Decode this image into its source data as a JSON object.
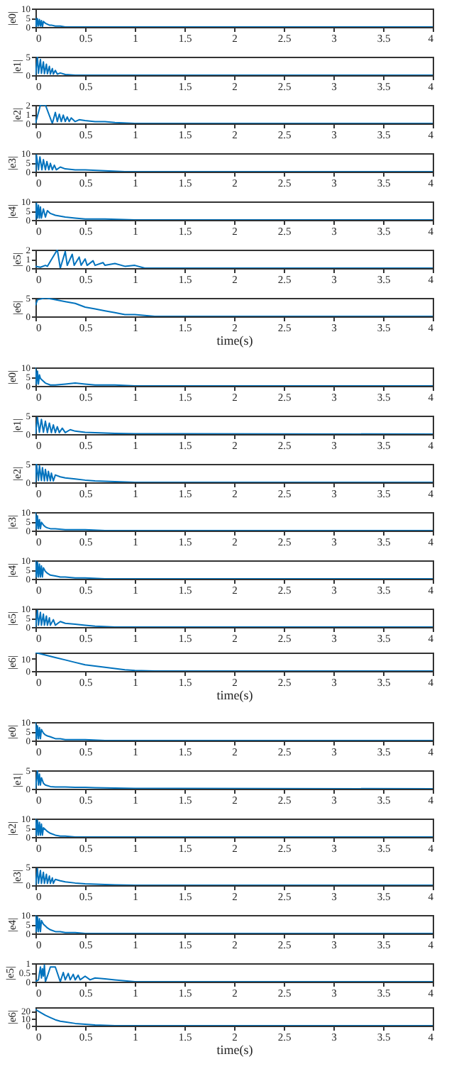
{
  "chart_data": [
    {
      "type": "line",
      "ylabel": "|e0|",
      "color": "#0072bd",
      "xlim": [
        0,
        4
      ],
      "xticks": [
        0,
        0.5,
        1,
        1.5,
        2,
        2.5,
        3,
        3.5,
        4
      ],
      "ylim": [
        0,
        10
      ],
      "yticks": [
        0,
        5,
        10
      ],
      "grid": false,
      "x": [
        0,
        0.01,
        0.02,
        0.03,
        0.04,
        0.05,
        0.06,
        0.07,
        0.08,
        0.1,
        0.12,
        0.14,
        0.16,
        0.2,
        0.25,
        0.3,
        0.4,
        0.5,
        0.7,
        1,
        4
      ],
      "values": [
        5,
        0,
        4.5,
        0.5,
        4,
        0.5,
        3.5,
        0,
        3,
        2,
        1.5,
        1,
        1,
        0.5,
        0.5,
        0,
        0,
        0,
        0,
        0,
        0
      ]
    },
    {
      "type": "line",
      "ylabel": "|e1|",
      "color": "#0072bd",
      "xlim": [
        0,
        4
      ],
      "xticks": [
        0,
        0.5,
        1,
        1.5,
        2,
        2.5,
        3,
        3.5,
        4
      ],
      "ylim": [
        0,
        5
      ],
      "yticks": [
        0,
        5
      ],
      "grid": false,
      "x": [
        0,
        0.02,
        0.03,
        0.05,
        0.06,
        0.08,
        0.09,
        0.11,
        0.12,
        0.14,
        0.15,
        0.17,
        0.18,
        0.2,
        0.22,
        0.25,
        0.3,
        0.4,
        4
      ],
      "values": [
        0,
        5,
        0.5,
        4.3,
        0.5,
        3.6,
        0.4,
        3,
        0.4,
        2.4,
        0.3,
        1.8,
        0.3,
        1.3,
        0.3,
        0.6,
        0.2,
        0,
        0
      ]
    },
    {
      "type": "line",
      "ylabel": "|e2|",
      "color": "#0072bd",
      "xlim": [
        0,
        4
      ],
      "xticks": [
        0,
        0.5,
        1,
        1.5,
        2,
        2.5,
        3,
        3.5,
        4
      ],
      "ylim": [
        0,
        2
      ],
      "yticks": [
        0,
        1,
        2
      ],
      "grid": false,
      "x": [
        0,
        0.05,
        0.1,
        0.17,
        0.2,
        0.22,
        0.24,
        0.26,
        0.28,
        0.3,
        0.32,
        0.34,
        0.36,
        0.4,
        0.44,
        0.5,
        0.6,
        0.7,
        0.8,
        1,
        4
      ],
      "values": [
        0,
        2,
        2,
        0,
        1.2,
        0.2,
        1,
        0.2,
        0.9,
        0.2,
        0.7,
        0.2,
        0.6,
        0.2,
        0.4,
        0.3,
        0.2,
        0.2,
        0.1,
        0,
        0
      ]
    },
    {
      "type": "line",
      "ylabel": "|e3|",
      "color": "#0072bd",
      "xlim": [
        0,
        4
      ],
      "xticks": [
        0,
        0.5,
        1,
        1.5,
        2,
        2.5,
        3,
        3.5,
        4
      ],
      "ylim": [
        0,
        10
      ],
      "yticks": [
        0,
        5,
        10
      ],
      "grid": false,
      "x": [
        0,
        0.01,
        0.03,
        0.045,
        0.065,
        0.08,
        0.1,
        0.115,
        0.135,
        0.15,
        0.17,
        0.19,
        0.21,
        0.25,
        0.3,
        0.4,
        0.5,
        0.7,
        0.9,
        1,
        4
      ],
      "values": [
        0,
        9,
        1,
        8,
        1,
        6.5,
        1,
        5.5,
        1,
        4.5,
        1,
        3.5,
        1,
        2.5,
        1.5,
        1,
        1,
        0.5,
        0,
        0,
        0
      ]
    },
    {
      "type": "line",
      "ylabel": "|e4|",
      "color": "#0072bd",
      "xlim": [
        0,
        4
      ],
      "xticks": [
        0,
        0.5,
        1,
        1.5,
        2,
        2.5,
        3,
        3.5,
        4
      ],
      "ylim": [
        0,
        10
      ],
      "yticks": [
        0,
        5,
        10
      ],
      "grid": false,
      "x": [
        0,
        0.01,
        0.02,
        0.03,
        0.04,
        0.05,
        0.06,
        0.08,
        0.1,
        0.12,
        0.15,
        0.2,
        0.25,
        0.3,
        0.4,
        0.5,
        0.7,
        1,
        4
      ],
      "values": [
        0,
        9,
        1,
        8,
        1,
        7,
        1,
        6,
        1.5,
        5,
        3.5,
        2.5,
        2,
        1.5,
        1,
        0.5,
        0.5,
        0,
        0
      ]
    },
    {
      "type": "line",
      "ylabel": "|e5|",
      "color": "#0072bd",
      "xlim": [
        0,
        4
      ],
      "xticks": [
        0,
        0.5,
        1,
        1.5,
        2,
        2.5,
        3,
        3.5,
        4
      ],
      "ylim": [
        0,
        2
      ],
      "yticks": [
        0,
        1,
        2
      ],
      "grid": false,
      "x": [
        0,
        0.05,
        0.1,
        0.12,
        0.22,
        0.25,
        0.3,
        0.32,
        0.37,
        0.39,
        0.44,
        0.46,
        0.5,
        0.52,
        0.58,
        0.6,
        0.68,
        0.7,
        0.8,
        0.9,
        1,
        1.1,
        4
      ],
      "values": [
        0.2,
        0.1,
        0.3,
        0.2,
        2,
        0,
        1.8,
        0.3,
        1.5,
        0.3,
        1.2,
        0.3,
        1,
        0.3,
        0.8,
        0.3,
        0.6,
        0.3,
        0.5,
        0.2,
        0.3,
        0,
        0
      ]
    },
    {
      "type": "line",
      "ylabel": "|e6|",
      "xlabel": "time(s)",
      "color": "#0072bd",
      "xlim": [
        0,
        4
      ],
      "xticks": [
        0,
        0.5,
        1,
        1.5,
        2,
        2.5,
        3,
        3.5,
        4
      ],
      "ylim": [
        0,
        5
      ],
      "yticks": [
        0,
        5
      ],
      "grid": false,
      "x": [
        0,
        0.02,
        0.1,
        0.2,
        0.3,
        0.4,
        0.5,
        0.6,
        0.7,
        0.8,
        0.9,
        1,
        1.2,
        1.5,
        4
      ],
      "values": [
        3,
        4.5,
        5,
        4.5,
        4,
        3.5,
        2.5,
        2,
        1.5,
        1,
        0.5,
        0.5,
        0,
        0,
        0
      ]
    },
    {
      "type": "line",
      "ylabel": "|e0|",
      "color": "#0072bd",
      "xlim": [
        0,
        4
      ],
      "xticks": [
        0,
        0.5,
        1,
        1.5,
        2,
        2.5,
        3,
        3.5,
        4
      ],
      "ylim": [
        0,
        10
      ],
      "yticks": [
        0,
        5,
        10
      ],
      "grid": false,
      "x": [
        0,
        0.01,
        0.02,
        0.03,
        0.04,
        0.05,
        0.07,
        0.1,
        0.15,
        0.2,
        0.3,
        0.4,
        0.5,
        0.6,
        0.8,
        1,
        4
      ],
      "values": [
        10,
        1,
        8,
        1,
        6,
        4,
        3,
        1.5,
        0.5,
        0.5,
        1,
        1.5,
        1,
        0.5,
        0.5,
        0,
        0
      ]
    },
    {
      "type": "line",
      "ylabel": "|e1|",
      "color": "#0072bd",
      "xlim": [
        0,
        4
      ],
      "xticks": [
        0,
        0.5,
        1,
        1.5,
        2,
        2.5,
        3,
        3.5,
        4
      ],
      "ylim": [
        0,
        5
      ],
      "yticks": [
        0,
        5
      ],
      "grid": false,
      "x": [
        0,
        0.02,
        0.04,
        0.06,
        0.08,
        0.1,
        0.12,
        0.14,
        0.16,
        0.18,
        0.2,
        0.22,
        0.24,
        0.27,
        0.3,
        0.35,
        0.4,
        0.5,
        0.6,
        0.8,
        1,
        4
      ],
      "values": [
        0,
        4.5,
        0.5,
        4,
        0.5,
        3.5,
        0.4,
        3,
        0.4,
        2.5,
        0.4,
        2,
        0.4,
        1.6,
        0.4,
        1.2,
        0.8,
        0.5,
        0.4,
        0.2,
        0.1,
        0
      ]
    },
    {
      "type": "line",
      "ylabel": "|e2|",
      "color": "#0072bd",
      "xlim": [
        0,
        4
      ],
      "xticks": [
        0,
        0.5,
        1,
        1.5,
        2,
        2.5,
        3,
        3.5,
        4
      ],
      "ylim": [
        0,
        5
      ],
      "yticks": [
        0,
        5
      ],
      "grid": false,
      "x": [
        0,
        0.01,
        0.03,
        0.04,
        0.06,
        0.07,
        0.09,
        0.1,
        0.12,
        0.13,
        0.15,
        0.16,
        0.18,
        0.2,
        0.25,
        0.3,
        0.4,
        0.5,
        0.6,
        0.8,
        1,
        4
      ],
      "values": [
        0,
        5,
        0.5,
        4.5,
        0.5,
        4,
        0.4,
        3.5,
        0.4,
        3,
        0.4,
        2.5,
        0.4,
        2,
        1.5,
        1.2,
        0.9,
        0.6,
        0.4,
        0.2,
        0,
        0
      ]
    },
    {
      "type": "line",
      "ylabel": "|e3|",
      "color": "#0072bd",
      "xlim": [
        0,
        4
      ],
      "xticks": [
        0,
        0.5,
        1,
        1.5,
        2,
        2.5,
        3,
        3.5,
        4
      ],
      "ylim": [
        0,
        10
      ],
      "yticks": [
        0,
        5,
        10
      ],
      "grid": false,
      "x": [
        0,
        0.01,
        0.02,
        0.03,
        0.04,
        0.05,
        0.06,
        0.08,
        0.1,
        0.12,
        0.15,
        0.2,
        0.3,
        0.4,
        0.5,
        0.7,
        1,
        4
      ],
      "values": [
        10,
        1,
        8,
        1,
        6,
        1,
        4.5,
        3,
        2,
        1.5,
        1,
        1,
        0.5,
        0.5,
        0.5,
        0,
        0,
        0
      ]
    },
    {
      "type": "line",
      "ylabel": "|e4|",
      "color": "#0072bd",
      "xlim": [
        0,
        4
      ],
      "xticks": [
        0,
        0.5,
        1,
        1.5,
        2,
        2.5,
        3,
        3.5,
        4
      ],
      "ylim": [
        0,
        10
      ],
      "yticks": [
        0,
        5,
        10
      ],
      "grid": false,
      "x": [
        0,
        0.01,
        0.02,
        0.03,
        0.04,
        0.05,
        0.06,
        0.07,
        0.08,
        0.1,
        0.12,
        0.15,
        0.2,
        0.25,
        0.3,
        0.4,
        0.5,
        0.7,
        1,
        4
      ],
      "values": [
        10,
        1,
        9,
        1,
        8,
        1,
        7,
        1,
        6,
        4,
        3,
        2,
        1.5,
        1,
        1,
        0.5,
        0.5,
        0,
        0,
        0
      ]
    },
    {
      "type": "line",
      "ylabel": "|e5|",
      "color": "#0072bd",
      "xlim": [
        0,
        4
      ],
      "xticks": [
        0,
        0.5,
        1,
        1.5,
        2,
        2.5,
        3,
        3.5,
        4
      ],
      "ylim": [
        0,
        10
      ],
      "yticks": [
        0,
        5,
        10
      ],
      "grid": false,
      "x": [
        0,
        0.02,
        0.03,
        0.05,
        0.06,
        0.08,
        0.09,
        0.11,
        0.12,
        0.14,
        0.15,
        0.18,
        0.2,
        0.25,
        0.3,
        0.4,
        0.5,
        0.6,
        0.8,
        1,
        4
      ],
      "values": [
        0,
        9,
        1,
        8,
        1,
        7,
        1,
        6,
        1,
        5,
        1,
        4,
        1,
        3,
        2,
        1.5,
        1,
        0.5,
        0,
        0,
        0
      ]
    },
    {
      "type": "line",
      "ylabel": "|e6|",
      "xlabel": "time(s)",
      "color": "#0072bd",
      "xlim": [
        0,
        4
      ],
      "xticks": [
        0,
        0.5,
        1,
        1.5,
        2,
        2.5,
        3,
        3.5,
        4
      ],
      "ylim": [
        0,
        15
      ],
      "yticks": [
        0,
        10
      ],
      "grid": false,
      "x": [
        0,
        0.1,
        0.2,
        0.3,
        0.4,
        0.5,
        0.6,
        0.7,
        0.8,
        0.9,
        1,
        1.2,
        1.5,
        4
      ],
      "values": [
        15,
        13,
        11,
        9,
        7,
        5,
        4,
        3,
        2,
        1,
        0.5,
        0,
        0,
        0
      ]
    },
    {
      "type": "line",
      "ylabel": "|e0|",
      "color": "#0072bd",
      "xlim": [
        0,
        4
      ],
      "xticks": [
        0,
        0.5,
        1,
        1.5,
        2,
        2.5,
        3,
        3.5,
        4
      ],
      "ylim": [
        0,
        10
      ],
      "yticks": [
        0,
        5,
        10
      ],
      "grid": false,
      "x": [
        0,
        0.01,
        0.02,
        0.03,
        0.04,
        0.05,
        0.06,
        0.08,
        0.1,
        0.12,
        0.15,
        0.2,
        0.25,
        0.3,
        0.4,
        0.5,
        0.7,
        1,
        4
      ],
      "values": [
        10,
        1,
        8,
        1,
        7,
        1,
        6,
        4,
        3,
        2.5,
        2,
        1,
        1,
        0.5,
        0.5,
        0.5,
        0,
        0,
        0
      ]
    },
    {
      "type": "line",
      "ylabel": "|e1|",
      "color": "#0072bd",
      "xlim": [
        0,
        4
      ],
      "xticks": [
        0,
        0.5,
        1,
        1.5,
        2,
        2.5,
        3,
        3.5,
        4
      ],
      "ylim": [
        0,
        5
      ],
      "yticks": [
        0,
        5
      ],
      "grid": false,
      "x": [
        0,
        0.02,
        0.03,
        0.04,
        0.05,
        0.06,
        0.08,
        0.1,
        0.15,
        0.2,
        0.3,
        0.4,
        0.5,
        0.6,
        0.8,
        1,
        4
      ],
      "values": [
        0,
        5,
        1,
        4,
        1,
        3,
        1.5,
        1,
        0.6,
        0.5,
        0.5,
        0.4,
        0.4,
        0.3,
        0.2,
        0.1,
        0
      ]
    },
    {
      "type": "line",
      "ylabel": "|e2|",
      "color": "#0072bd",
      "xlim": [
        0,
        4
      ],
      "xticks": [
        0,
        0.5,
        1,
        1.5,
        2,
        2.5,
        3,
        3.5,
        4
      ],
      "ylim": [
        0,
        10
      ],
      "yticks": [
        0,
        5,
        10
      ],
      "grid": false,
      "x": [
        0,
        0.01,
        0.02,
        0.03,
        0.04,
        0.05,
        0.06,
        0.07,
        0.08,
        0.1,
        0.12,
        0.15,
        0.2,
        0.25,
        0.3,
        0.4,
        0.5,
        1,
        4
      ],
      "values": [
        10,
        1,
        9,
        1,
        8,
        1,
        7,
        1,
        5,
        4,
        3,
        2,
        1,
        0.5,
        0.5,
        0,
        0,
        0,
        0
      ]
    },
    {
      "type": "line",
      "ylabel": "|e3|",
      "color": "#0072bd",
      "xlim": [
        0,
        4
      ],
      "xticks": [
        0,
        0.5,
        1,
        1.5,
        2,
        2.5,
        3,
        3.5,
        4
      ],
      "ylim": [
        0,
        5
      ],
      "yticks": [
        0,
        5
      ],
      "grid": false,
      "x": [
        0,
        0.02,
        0.03,
        0.05,
        0.06,
        0.08,
        0.09,
        0.11,
        0.12,
        0.14,
        0.15,
        0.17,
        0.18,
        0.2,
        0.25,
        0.3,
        0.4,
        0.5,
        0.6,
        0.8,
        1,
        4
      ],
      "values": [
        0,
        4.5,
        0.5,
        4,
        0.5,
        3.5,
        0.5,
        3,
        0.5,
        2.5,
        0.5,
        2,
        0.5,
        1.6,
        1.2,
        0.9,
        0.6,
        0.4,
        0.3,
        0.1,
        0,
        0
      ]
    },
    {
      "type": "line",
      "ylabel": "|e4|",
      "color": "#0072bd",
      "xlim": [
        0,
        4
      ],
      "xticks": [
        0,
        0.5,
        1,
        1.5,
        2,
        2.5,
        3,
        3.5,
        4
      ],
      "ylim": [
        0,
        10
      ],
      "yticks": [
        0,
        5,
        10
      ],
      "grid": false,
      "x": [
        0,
        0.01,
        0.02,
        0.03,
        0.04,
        0.05,
        0.06,
        0.08,
        0.1,
        0.12,
        0.15,
        0.2,
        0.25,
        0.3,
        0.4,
        0.5,
        0.7,
        1,
        4
      ],
      "values": [
        10,
        1,
        9,
        1,
        8,
        1,
        7,
        5,
        4,
        3,
        2,
        1,
        1,
        0.5,
        0.5,
        0,
        0,
        0,
        0
      ]
    },
    {
      "type": "line",
      "ylabel": "|e5|",
      "color": "#0072bd",
      "xlim": [
        0,
        4
      ],
      "xticks": [
        0,
        0.5,
        1,
        1.5,
        2,
        2.5,
        3,
        3.5,
        4
      ],
      "ylim": [
        0,
        1
      ],
      "yticks": [
        0,
        0.5,
        1
      ],
      "grid": false,
      "x": [
        0,
        0.03,
        0.05,
        0.06,
        0.07,
        0.08,
        0.09,
        0.1,
        0.12,
        0.15,
        0.2,
        0.25,
        0.28,
        0.3,
        0.33,
        0.35,
        0.38,
        0.4,
        0.43,
        0.45,
        0.5,
        0.55,
        0.6,
        0.7,
        0.8,
        1,
        4
      ],
      "values": [
        0,
        0.1,
        0.8,
        0.2,
        0.7,
        0.3,
        0.9,
        0,
        0.3,
        0.8,
        0.8,
        0,
        0.5,
        0.1,
        0.45,
        0.1,
        0.4,
        0.1,
        0.35,
        0.1,
        0.3,
        0.1,
        0.2,
        0.15,
        0.1,
        0,
        0
      ]
    },
    {
      "type": "line",
      "ylabel": "|e6|",
      "xlabel": "time(s)",
      "color": "#0072bd",
      "xlim": [
        0,
        4
      ],
      "xticks": [
        0,
        0.5,
        1,
        1.5,
        2,
        2.5,
        3,
        3.5,
        4
      ],
      "ylim": [
        0,
        25
      ],
      "yticks": [
        0,
        10,
        20
      ],
      "grid": false,
      "x": [
        0,
        0.05,
        0.1,
        0.15,
        0.2,
        0.25,
        0.3,
        0.4,
        0.5,
        0.6,
        0.8,
        1,
        4
      ],
      "values": [
        22,
        18,
        14,
        11,
        8,
        6,
        5,
        3,
        2,
        1,
        0,
        0,
        0
      ]
    }
  ]
}
